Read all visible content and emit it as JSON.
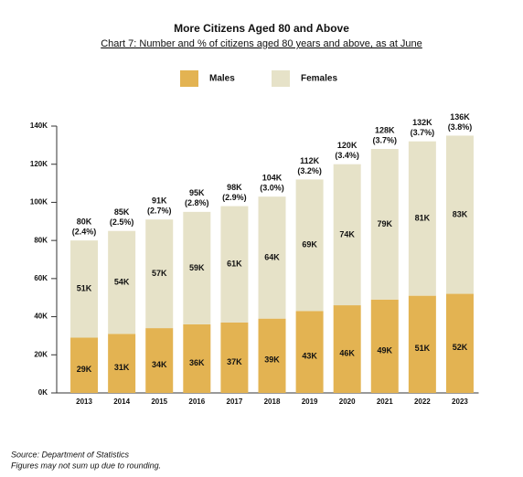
{
  "chart_data": {
    "type": "stacked-bar",
    "title": "More Citizens Aged 80 and Above",
    "subtitle": "Chart 7: Number and % of citizens aged 80 years and above, as at June",
    "categories": [
      "2013",
      "2014",
      "2015",
      "2016",
      "2017",
      "2018",
      "2019",
      "2020",
      "2021",
      "2022",
      "2023"
    ],
    "series": [
      {
        "name": "Males",
        "color": "#e3b352",
        "values": [
          29000,
          31000,
          34000,
          36000,
          37000,
          39000,
          43000,
          46000,
          49000,
          51000,
          52000
        ],
        "value_labels": [
          "29K",
          "31K",
          "34K",
          "36K",
          "37K",
          "39K",
          "43K",
          "46K",
          "49K",
          "51K",
          "52K"
        ]
      },
      {
        "name": "Females",
        "color": "#e6e2c8",
        "values": [
          51000,
          54000,
          57000,
          59000,
          61000,
          64000,
          69000,
          74000,
          79000,
          81000,
          83000
        ],
        "value_labels": [
          "51K",
          "54K",
          "57K",
          "59K",
          "61K",
          "64K",
          "69K",
          "74K",
          "79K",
          "81K",
          "83K"
        ]
      }
    ],
    "total_labels": [
      "80K",
      "85K",
      "91K",
      "95K",
      "98K",
      "104K",
      "112K",
      "120K",
      "128K",
      "132K",
      "136K"
    ],
    "share_labels": [
      "(2.4%)",
      "(2.5%)",
      "(2.7%)",
      "(2.8%)",
      "(2.9%)",
      "(3.0%)",
      "(3.2%)",
      "(3.4%)",
      "(3.7%)",
      "(3.7%)",
      "(3.8%)"
    ],
    "ylim": [
      0,
      140000
    ],
    "yticks": [
      {
        "value": 0,
        "label": "0K"
      },
      {
        "value": 20000,
        "label": "20K"
      },
      {
        "value": 40000,
        "label": "40K"
      },
      {
        "value": 60000,
        "label": "60K"
      },
      {
        "value": 80000,
        "label": "80K"
      },
      {
        "value": 100000,
        "label": "100K"
      },
      {
        "value": 120000,
        "label": "120K"
      },
      {
        "value": 140000,
        "label": "140K"
      }
    ],
    "legend": "top",
    "notes": [
      "Source: Department of Statistics",
      "Figures may not sum up due to rounding."
    ]
  }
}
